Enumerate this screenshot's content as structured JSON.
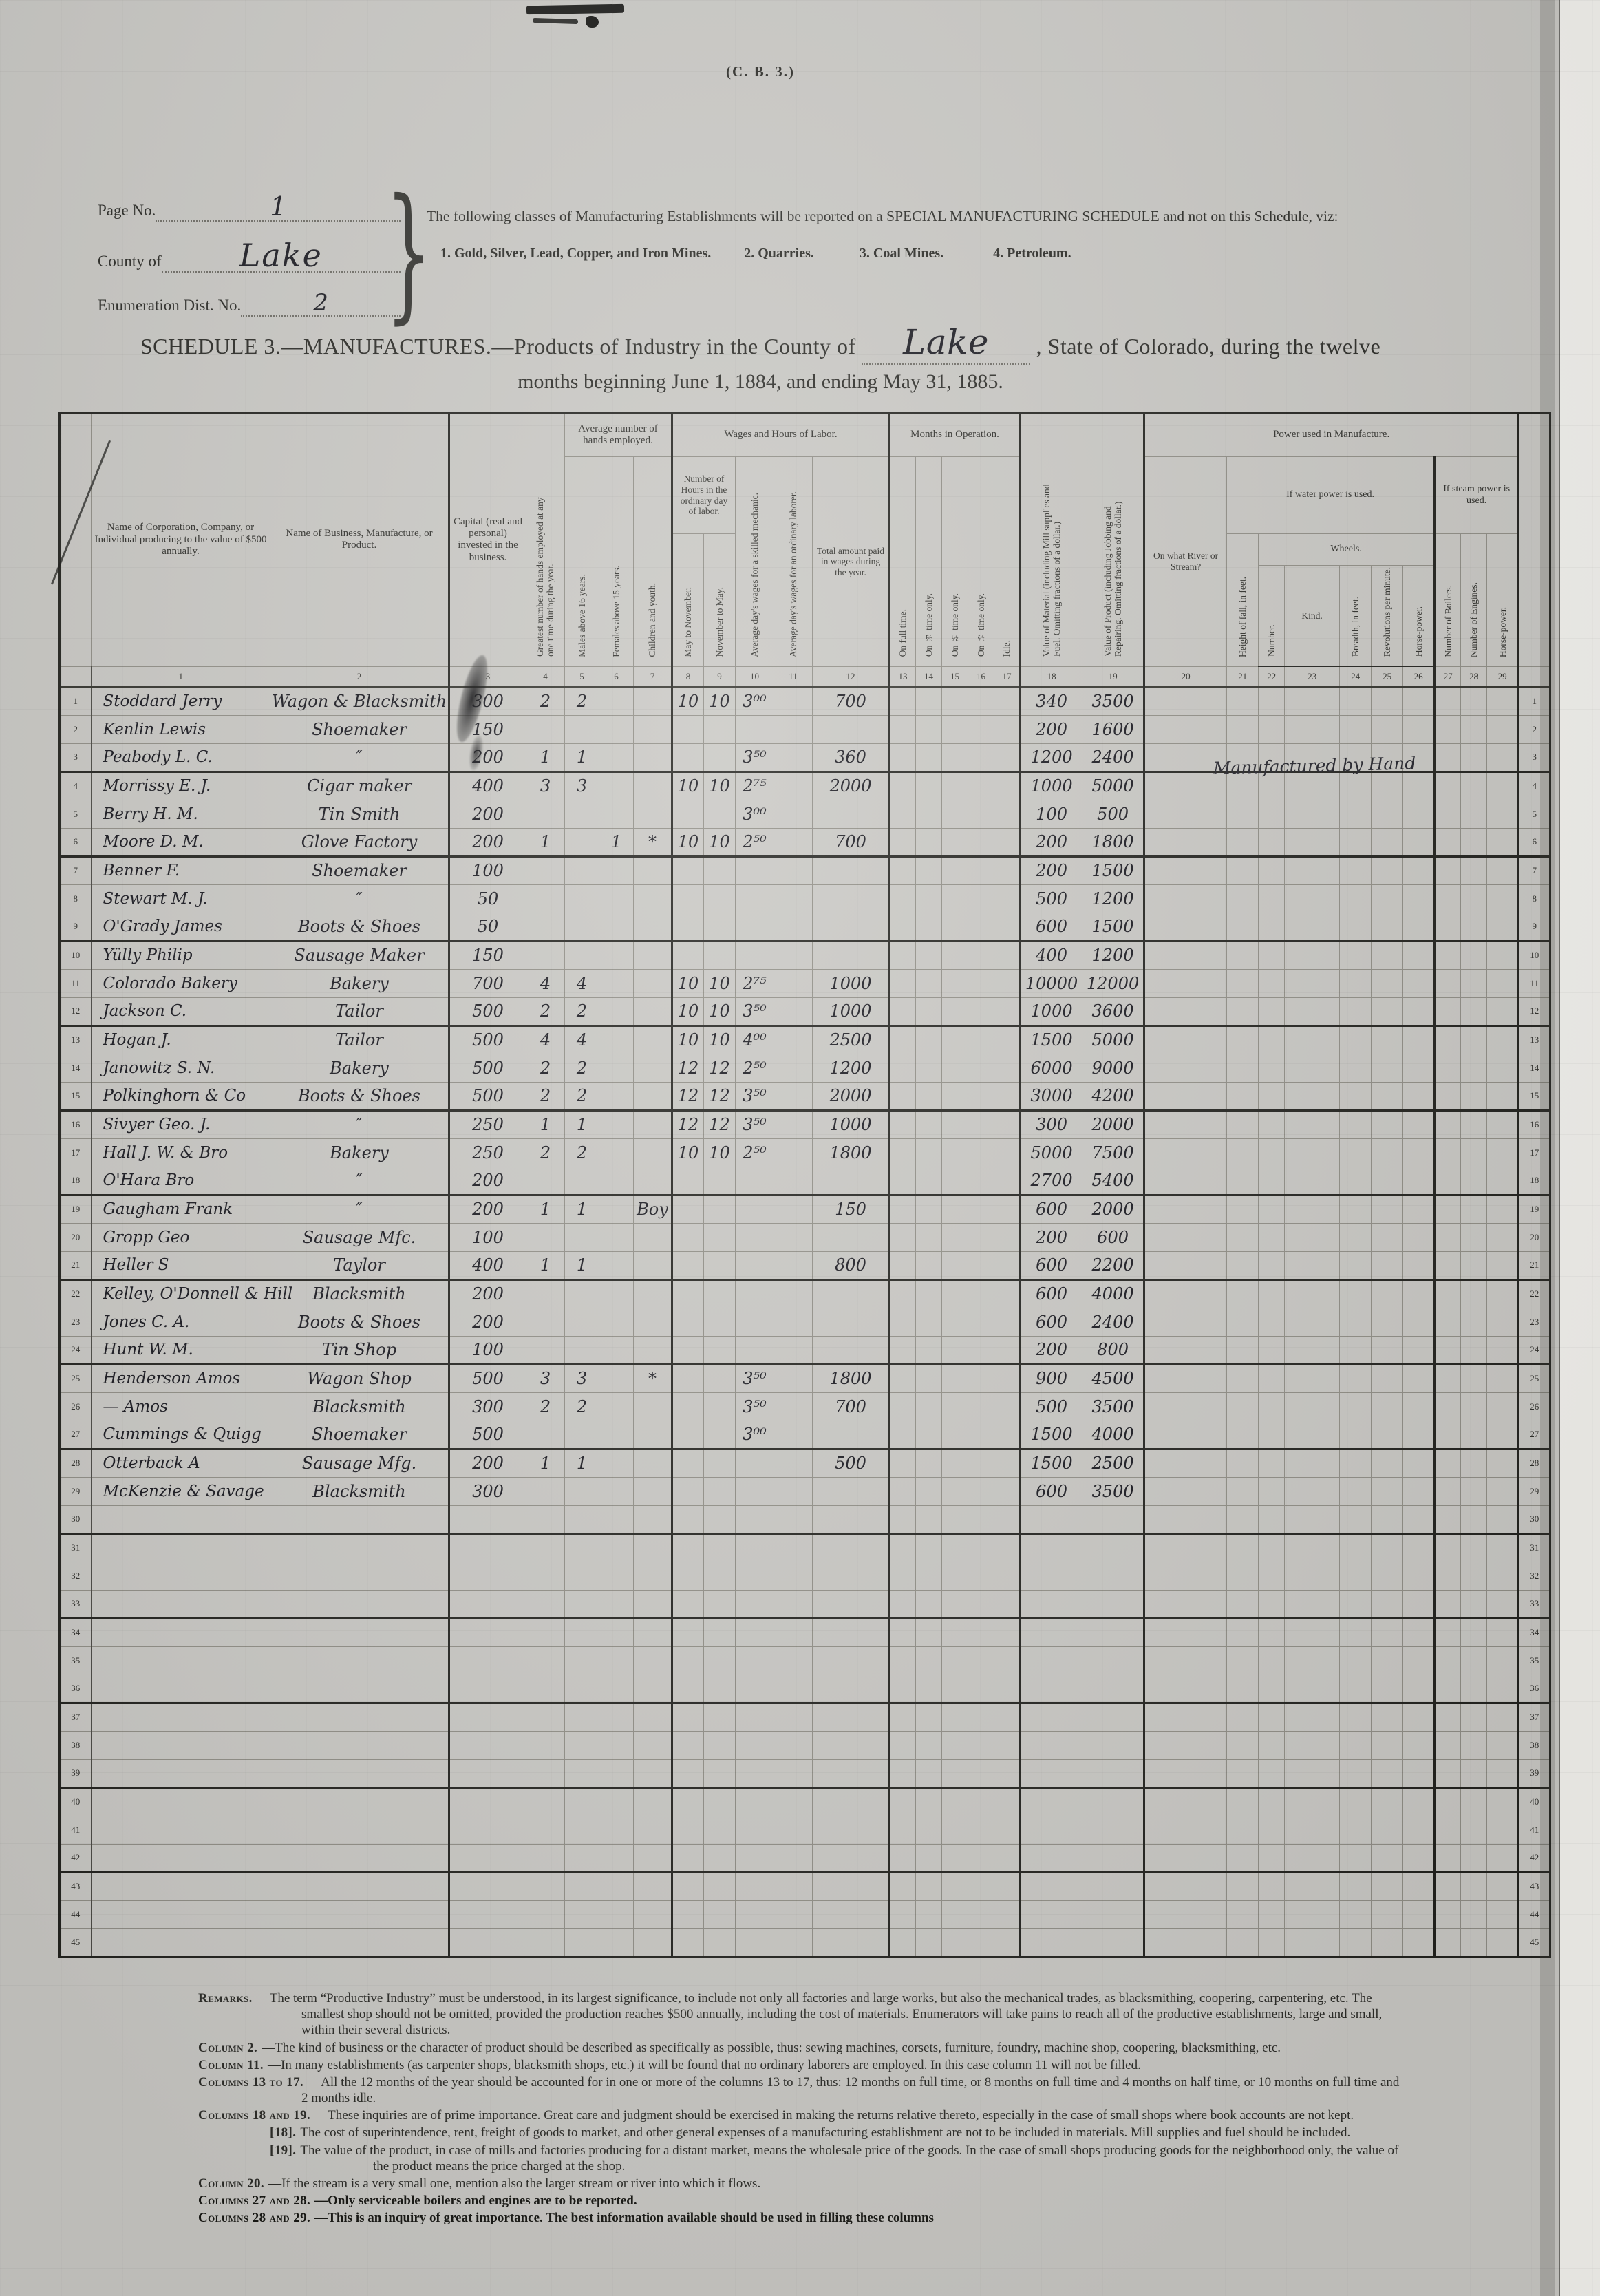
{
  "form_code": "(C. B. 3.)",
  "header": {
    "page_no_label": "Page No.",
    "page_no": "1",
    "county_label": "County of",
    "county": "Lake",
    "enum_label": "Enumeration Dist. No.",
    "enum_no": "2",
    "notice_line1": "The following classes of Manufacturing Establishments will be reported on a SPECIAL MANUFACTURING SCHEDULE and not on this Schedule, viz:",
    "notice_items": [
      "1.  Gold, Silver, Lead, Copper, and Iron Mines.",
      "2.  Quarries.",
      "3.  Coal Mines.",
      "4.  Petroleum."
    ]
  },
  "title": {
    "line1_before": "SCHEDULE 3.—MANUFACTURES.—Products of Industry in the County of",
    "county_value": "Lake",
    "line1_after": ", State of Colorado, during the twelve",
    "line2": "months beginning June 1, 1884, and ending May 31, 1885."
  },
  "table": {
    "groups": {
      "hands": "Average number of hands employed.",
      "wages": "Wages and Hours of Labor.",
      "hours_sub": "Number of Hours in the ordinary day of labor.",
      "months": "Months in Operation.",
      "power": "Power used in Manufacture.",
      "water": "If water power is used.",
      "wheels": "Wheels.",
      "steam": "If steam power is used."
    },
    "columns": {
      "c1": "Name of Corporation, Company, or Individual producing to the value of $500 annually.",
      "c2": "Name of Business, Manufacture, or Product.",
      "c3": "Capital (real and personal) invested in the business.",
      "c4": "Greatest number of hands employed at any one time during the year.",
      "c5": "Males above 16 years.",
      "c6": "Females above 15 years.",
      "c7": "Children and youth.",
      "c8": "May to November.",
      "c9": "November to May.",
      "c10": "Average day's wages for a skilled mechanic.",
      "c11": "Average day's wages for an ordinary laborer.",
      "c12": "Total amount paid in wages during the year.",
      "c13": "On full time.",
      "c14": "On ¾ time only.",
      "c15": "On ⅔ time only.",
      "c16": "On ½ time only.",
      "c17": "Idle.",
      "c18": "Value of Material (including Mill supplies and Fuel. Omitting fractions of a dollar.)",
      "c19": "Value of Product (including Jobbing and Repairing. Omitting fractions of a dollar.)",
      "c20": "On what River or Stream?",
      "c21": "Height of fall, in feet.",
      "c22": "Number.",
      "c23": "Kind.",
      "c24": "Breadth, in feet.",
      "c25": "Revolutions per minute.",
      "c26": "Horse-power.",
      "c27": "Number of Boilers.",
      "c28": "Number of Engines.",
      "c29": "Horse-power."
    },
    "column_numbers": [
      "1",
      "2",
      "3",
      "4",
      "5",
      "6",
      "7",
      "8",
      "9",
      "10",
      "11",
      "12",
      "13",
      "14",
      "15",
      "16",
      "17",
      "18",
      "19",
      "20",
      "21",
      "22",
      "23",
      "24",
      "25",
      "26",
      "27",
      "28",
      "29"
    ],
    "note_row4": "Manufactured by Hand",
    "rows": [
      {
        "n": "1",
        "name": "Stoddard Jerry",
        "business": "Wagon & Blacksmith",
        "c3": "300",
        "c4": "2",
        "c5": "2",
        "c8": "10",
        "c9": "10",
        "c10": "3⁰⁰",
        "c12": "700",
        "c18": "340",
        "c19": "3500"
      },
      {
        "n": "2",
        "name": "Kenlin Lewis",
        "business": "Shoemaker",
        "c3": "150",
        "c18": "200",
        "c19": "1600"
      },
      {
        "n": "3",
        "name": "Peabody L. C.",
        "business": "″",
        "c3": "200",
        "c4": "1",
        "c5": "1",
        "c10": "3⁵⁰",
        "c12": "360",
        "c18": "1200",
        "c19": "2400"
      },
      {
        "n": "4",
        "name": "Morrissy E. J.",
        "business": "Cigar maker",
        "c3": "400",
        "c4": "3",
        "c5": "3",
        "c8": "10",
        "c9": "10",
        "c10": "2⁷⁵",
        "c12": "2000",
        "c18": "1000",
        "c19": "5000"
      },
      {
        "n": "5",
        "name": "Berry H. M.",
        "business": "Tin Smith",
        "c3": "200",
        "c10": "3⁰⁰",
        "c18": "100",
        "c19": "500"
      },
      {
        "n": "6",
        "name": "Moore D. M.",
        "business": "Glove Factory",
        "c3": "200",
        "c4": "1",
        "c6": "1",
        "c7": "*",
        "c8": "10",
        "c9": "10",
        "c10": "2⁵⁰",
        "c12": "700",
        "c18": "200",
        "c19": "1800"
      },
      {
        "n": "7",
        "name": "Benner F.",
        "business": "Shoemaker",
        "c3": "100",
        "c18": "200",
        "c19": "1500"
      },
      {
        "n": "8",
        "name": "Stewart M. J.",
        "business": "″",
        "c3": "50",
        "c18": "500",
        "c19": "1200"
      },
      {
        "n": "9",
        "name": "O'Grady James",
        "business": "Boots & Shoes",
        "c3": "50",
        "c18": "600",
        "c19": "1500"
      },
      {
        "n": "10",
        "name": "Yülly Philip",
        "business": "Sausage Maker",
        "c3": "150",
        "c18": "400",
        "c19": "1200"
      },
      {
        "n": "11",
        "name": "Colorado Bakery",
        "business": "Bakery",
        "c3": "700",
        "c4": "4",
        "c5": "4",
        "c8": "10",
        "c9": "10",
        "c10": "2⁷⁵",
        "c12": "1000",
        "c18": "10000",
        "c19": "12000"
      },
      {
        "n": "12",
        "name": "Jackson C.",
        "business": "Tailor",
        "c3": "500",
        "c4": "2",
        "c5": "2",
        "c8": "10",
        "c9": "10",
        "c10": "3⁵⁰",
        "c12": "1000",
        "c18": "1000",
        "c19": "3600"
      },
      {
        "n": "13",
        "name": "Hogan J.",
        "business": "Tailor",
        "c3": "500",
        "c4": "4",
        "c5": "4",
        "c8": "10",
        "c9": "10",
        "c10": "4⁰⁰",
        "c12": "2500",
        "c18": "1500",
        "c19": "5000"
      },
      {
        "n": "14",
        "name": "Janowitz S. N.",
        "business": "Bakery",
        "c3": "500",
        "c4": "2",
        "c5": "2",
        "c8": "12",
        "c9": "12",
        "c10": "2⁵⁰",
        "c12": "1200",
        "c18": "6000",
        "c19": "9000"
      },
      {
        "n": "15",
        "name": "Polkinghorn & Co",
        "business": "Boots & Shoes",
        "c3": "500",
        "c4": "2",
        "c5": "2",
        "c8": "12",
        "c9": "12",
        "c10": "3⁵⁰",
        "c12": "2000",
        "c18": "3000",
        "c19": "4200"
      },
      {
        "n": "16",
        "name": "Sivyer Geo. J.",
        "business": "″",
        "c3": "250",
        "c4": "1",
        "c5": "1",
        "c8": "12",
        "c9": "12",
        "c10": "3⁵⁰",
        "c12": "1000",
        "c18": "300",
        "c19": "2000"
      },
      {
        "n": "17",
        "name": "Hall J. W. & Bro",
        "business": "Bakery",
        "c3": "250",
        "c4": "2",
        "c5": "2",
        "c8": "10",
        "c9": "10",
        "c10": "2⁵⁰",
        "c12": "1800",
        "c18": "5000",
        "c19": "7500"
      },
      {
        "n": "18",
        "name": "O'Hara Bro",
        "business": "″",
        "c3": "200",
        "c18": "2700",
        "c19": "5400"
      },
      {
        "n": "19",
        "name": "Gaugham Frank",
        "business": "″",
        "c3": "200",
        "c4": "1",
        "c5": "1",
        "c7": "Boy",
        "c12": "150",
        "c18": "600",
        "c19": "2000"
      },
      {
        "n": "20",
        "name": "Gropp Geo",
        "business": "Sausage Mfc.",
        "c3": "100",
        "c18": "200",
        "c19": "600"
      },
      {
        "n": "21",
        "name": "Heller S",
        "business": "Taylor",
        "c3": "400",
        "c4": "1",
        "c5": "1",
        "c12": "800",
        "c18": "600",
        "c19": "2200"
      },
      {
        "n": "22",
        "name": "Kelley, O'Donnell & Hill",
        "business": "Blacksmith",
        "c3": "200",
        "c18": "600",
        "c19": "4000"
      },
      {
        "n": "23",
        "name": "Jones C. A.",
        "business": "Boots & Shoes",
        "c3": "200",
        "c18": "600",
        "c19": "2400"
      },
      {
        "n": "24",
        "name": "Hunt W. M.",
        "business": "Tin Shop",
        "c3": "100",
        "c18": "200",
        "c19": "800"
      },
      {
        "n": "25",
        "name": "Henderson Amos",
        "business": "Wagon Shop",
        "c3": "500",
        "c4": "3",
        "c5": "3",
        "c7": "*",
        "c10": "3⁵⁰",
        "c12": "1800",
        "c18": "900",
        "c19": "4500"
      },
      {
        "n": "26",
        "name": "— Amos",
        "business": "Blacksmith",
        "c3": "300",
        "c4": "2",
        "c5": "2",
        "c10": "3⁵⁰",
        "c12": "700",
        "c18": "500",
        "c19": "3500"
      },
      {
        "n": "27",
        "name": "Cummings & Quigg",
        "business": "Shoemaker",
        "c3": "500",
        "c10": "3⁰⁰",
        "c18": "1500",
        "c19": "4000"
      },
      {
        "n": "28",
        "name": "Otterback A",
        "business": "Sausage Mfg.",
        "c3": "200",
        "c4": "1",
        "c5": "1",
        "c12": "500",
        "c18": "1500",
        "c19": "2500"
      },
      {
        "n": "29",
        "name": "McKenzie & Savage",
        "business": "Blacksmith",
        "c3": "300",
        "c18": "600",
        "c19": "3500"
      },
      {
        "n": "30"
      },
      {
        "n": "31"
      },
      {
        "n": "32"
      },
      {
        "n": "33"
      },
      {
        "n": "34"
      },
      {
        "n": "35"
      },
      {
        "n": "36"
      },
      {
        "n": "37"
      },
      {
        "n": "38"
      },
      {
        "n": "39"
      },
      {
        "n": "40"
      },
      {
        "n": "41"
      },
      {
        "n": "42"
      },
      {
        "n": "43"
      },
      {
        "n": "44"
      },
      {
        "n": "45"
      }
    ]
  },
  "remarks": [
    {
      "label": "Remarks.",
      "text": "—The term “Productive Industry” must be understood, in its largest significance, to include not only all factories and large works, but also the mechanical trades, as blacksmithing, coopering, carpentering, etc. The smallest shop should not be omitted, provided the production reaches $500 annually, including the cost of materials.  Enumerators will take pains to reach all of the productive establishments, large and small, within their several districts.",
      "indent": 0
    },
    {
      "label": "Column 2.",
      "text": "—The kind of business or the character of product should be described as specifically as possible, thus: sewing machines, corsets, furniture, foundry, machine shop, coopering, blacksmithing, etc.",
      "indent": 0
    },
    {
      "label": "Column 11.",
      "text": "—In many establishments (as carpenter shops, blacksmith shops, etc.) it will be found that no ordinary laborers are employed.  In this case column 11 will not be filled.",
      "indent": 0
    },
    {
      "label": "Columns 13 to 17.",
      "text": "—All the 12 months of the year should be accounted for in one or more of the columns 13 to 17, thus: 12 months on full time, or 8 months on full time and 4 months on half time, or 10 months on full time and 2 months idle.",
      "indent": 0
    },
    {
      "label": "Columns 18 and 19.",
      "text": "—These inquiries are of prime importance.  Great care and judgment should be exercised in making the returns relative thereto, especially in the case of small shops where book accounts are not kept.",
      "indent": 0
    },
    {
      "label": "[18].",
      "text": "The cost of superintendence, rent, freight of goods to market, and other general expenses of a manufacturing establishment are not to be included in materials.  Mill supplies and fuel should be included.",
      "indent": 1
    },
    {
      "label": "[19].",
      "text": "The value of the product, in case of mills and factories producing for a distant market, means the wholesale price of the goods.  In the case of small shops producing goods for the neighborhood only, the value of the product means the price charged at the shop.",
      "indent": 1
    },
    {
      "label": "Column 20.",
      "text": "—If the stream is a very small one, mention also the larger stream or river into which it flows.",
      "indent": 0
    },
    {
      "label": "Columns 27 and 28.",
      "text": "—Only serviceable boilers and engines are to be reported.",
      "indent": 0
    },
    {
      "label": "Columns 28 and 29.",
      "text": "—This is an inquiry of great importance.  The best information available should be used in filling these columns",
      "indent": 0
    }
  ]
}
